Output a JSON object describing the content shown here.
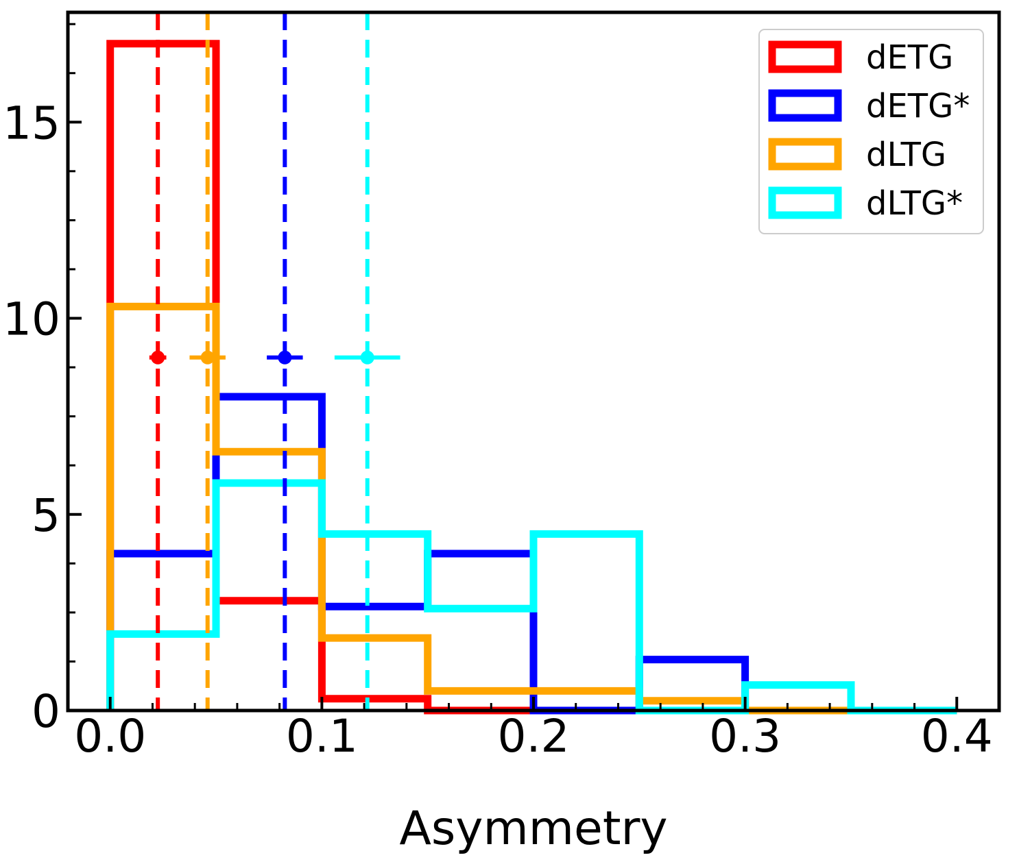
{
  "chart_data": {
    "type": "histogram",
    "title": "",
    "xlabel": "Asymmetry",
    "ylabel": "",
    "xlim": [
      -0.02,
      0.42
    ],
    "ylim": [
      0,
      17.8
    ],
    "x_ticks": [
      0.0,
      0.1,
      0.2,
      0.3,
      0.4
    ],
    "x_tick_labels": [
      "0.0",
      "0.1",
      "0.2",
      "0.3",
      "0.4"
    ],
    "y_ticks": [
      0,
      5,
      10,
      15
    ],
    "y_tick_labels": [
      "0",
      "5",
      "10",
      "15"
    ],
    "x_minor_step": 0.02,
    "y_minor_step": 1.25,
    "bin_edges": [
      0.0,
      0.05,
      0.1,
      0.15,
      0.2,
      0.25,
      0.3,
      0.35,
      0.4
    ],
    "series": [
      {
        "name": "dETG",
        "color": "#ff0000",
        "values": [
          17.0,
          2.8,
          0.3,
          0.0,
          0.0,
          0.0,
          0.0,
          0.0
        ]
      },
      {
        "name": "dETG*",
        "color": "#0000ff",
        "values": [
          4.0,
          8.0,
          2.65,
          4.0,
          0.0,
          1.3,
          0.0,
          0.0
        ]
      },
      {
        "name": "dLTG",
        "color": "#ffa500",
        "values": [
          10.3,
          6.6,
          1.85,
          0.5,
          0.5,
          0.25,
          0.0,
          0.0
        ]
      },
      {
        "name": "dLTG*",
        "color": "#00ffff",
        "values": [
          1.95,
          5.8,
          4.5,
          2.6,
          4.5,
          0.0,
          0.65,
          0.0
        ]
      }
    ],
    "medians": [
      {
        "name": "dETG",
        "color": "#ff0000",
        "x": 0.0225,
        "y": 9.0,
        "xerr": 0.004
      },
      {
        "name": "dLTG",
        "color": "#ffa500",
        "x": 0.046,
        "y": 9.0,
        "xerr": 0.0085
      },
      {
        "name": "dETG*",
        "color": "#0000ff",
        "x": 0.0825,
        "y": 9.0,
        "xerr": 0.0085
      },
      {
        "name": "dLTG*",
        "color": "#00ffff",
        "x": 0.1215,
        "y": 9.0,
        "xerr": 0.0155
      }
    ],
    "legend": {
      "location": "top-right",
      "entries": [
        "dETG",
        "dETG*",
        "dLTG",
        "dLTG*"
      ]
    }
  }
}
